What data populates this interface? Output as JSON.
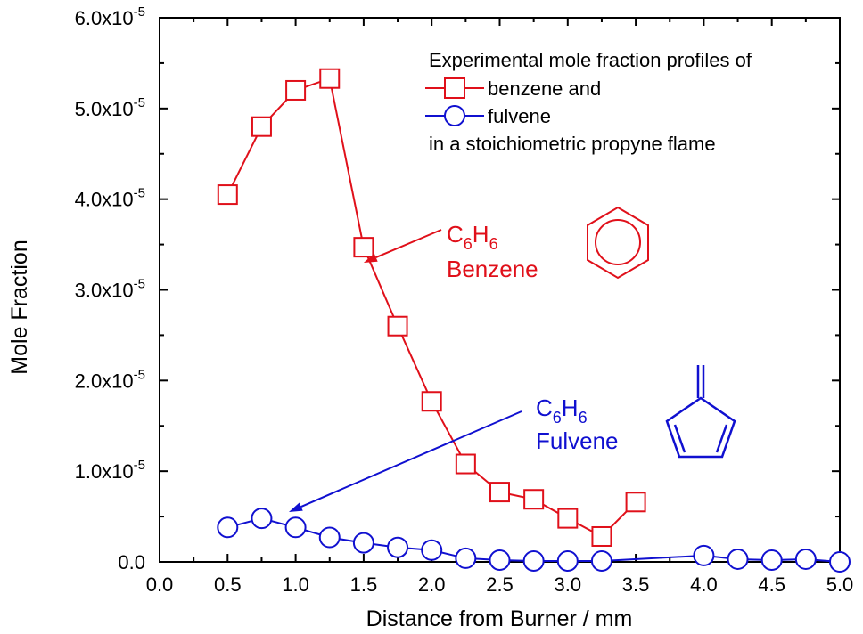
{
  "chart_data": {
    "type": "line",
    "xlabel": "Distance from Burner / mm",
    "ylabel": "Mole Fraction",
    "xlim": [
      0,
      5
    ],
    "ylim": [
      0,
      6e-05
    ],
    "x_ticks": [
      {
        "value": 0.0,
        "label": "0.0"
      },
      {
        "value": 0.5,
        "label": "0.5"
      },
      {
        "value": 1.0,
        "label": "1.0"
      },
      {
        "value": 1.5,
        "label": "1.5"
      },
      {
        "value": 2.0,
        "label": "2.0"
      },
      {
        "value": 2.5,
        "label": "2.5"
      },
      {
        "value": 3.0,
        "label": "3.0"
      },
      {
        "value": 3.5,
        "label": "3.5"
      },
      {
        "value": 4.0,
        "label": "4.0"
      },
      {
        "value": 4.5,
        "label": "4.5"
      },
      {
        "value": 5.0,
        "label": "5.0"
      }
    ],
    "y_ticks": [
      {
        "value": 0,
        "label": "0.0",
        "exp": ""
      },
      {
        "value": 1e-05,
        "label": "1.0x10",
        "exp": "-5"
      },
      {
        "value": 2e-05,
        "label": "2.0x10",
        "exp": "-5"
      },
      {
        "value": 3e-05,
        "label": "3.0x10",
        "exp": "-5"
      },
      {
        "value": 4e-05,
        "label": "4.0x10",
        "exp": "-5"
      },
      {
        "value": 5e-05,
        "label": "5.0x10",
        "exp": "-5"
      },
      {
        "value": 6e-05,
        "label": "6.0x10",
        "exp": "-5"
      }
    ],
    "series": [
      {
        "name": "benzene and",
        "marker": "square",
        "color": "#e0101a",
        "x": [
          0.5,
          0.75,
          1.0,
          1.25,
          1.5,
          1.75,
          2.0,
          2.25,
          2.5,
          2.75,
          3.0,
          3.25,
          3.5
        ],
        "y": [
          4.05e-05,
          4.8e-05,
          5.2e-05,
          5.33e-05,
          3.47e-05,
          2.6e-05,
          1.77e-05,
          1.08e-05,
          7.7e-06,
          6.9e-06,
          4.8e-06,
          2.8e-06,
          6.6e-06
        ]
      },
      {
        "name": "fulvene",
        "marker": "circle",
        "color": "#1010d0",
        "x": [
          0.5,
          0.75,
          1.0,
          1.25,
          1.5,
          1.75,
          2.0,
          2.25,
          2.5,
          2.75,
          3.0,
          3.25,
          4.0,
          4.25,
          4.5,
          4.75,
          5.0
        ],
        "y": [
          3.8e-06,
          4.8e-06,
          3.8e-06,
          2.7e-06,
          2.1e-06,
          1.6e-06,
          1.3e-06,
          4e-07,
          2e-07,
          1e-07,
          1e-07,
          1e-07,
          7e-07,
          3e-07,
          2e-07,
          3e-07,
          0.0
        ]
      }
    ],
    "legend": {
      "title": "Experimental mole fraction profiles of",
      "footer": "in a stoichiometric propyne flame",
      "placement": "top-right"
    },
    "annotations": {
      "benzene": {
        "formula_c": "C",
        "formula_sub1": "6",
        "formula_h": "H",
        "formula_sub2": "6",
        "name": "Benzene",
        "arrow_target": [
          1.5,
          3.3e-05
        ]
      },
      "fulvene": {
        "formula_c": "C",
        "formula_sub1": "6",
        "formula_h": "H",
        "formula_sub2": "6",
        "name": "Fulvene",
        "arrow_target": [
          0.95,
          5.5e-06
        ]
      }
    }
  }
}
